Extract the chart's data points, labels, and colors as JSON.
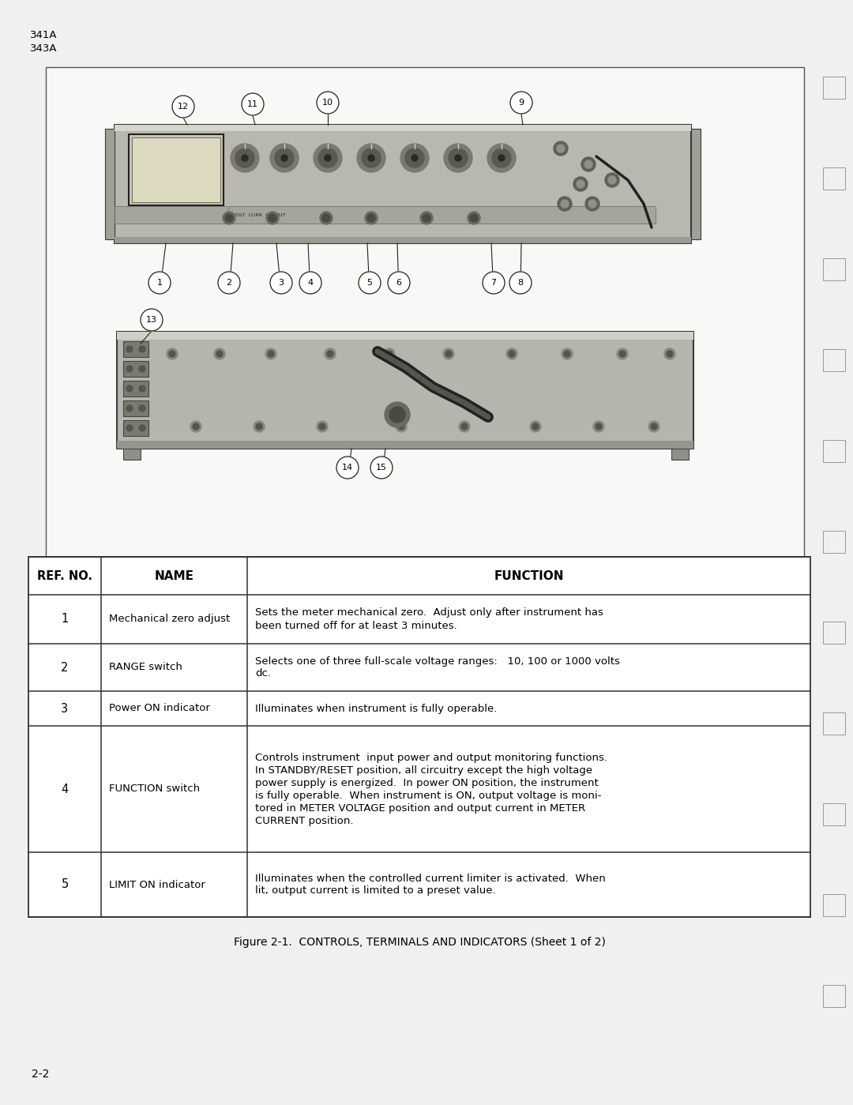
{
  "page_bg": "#f2f2f0",
  "content_bg": "#ffffff",
  "border_color": "#444444",
  "text_color": "#000000",
  "header_text1": "341A",
  "header_text2": "343A",
  "figure_caption": "Figure 2-1.  CONTROLS, TERMINALS AND INDICATORS (Sheet 1 of 2)",
  "page_number": "2-2",
  "table_header": [
    "REF. NO.",
    "NAME",
    "FUNCTION"
  ],
  "table_rows": [
    {
      "ref": "1",
      "name": "Mechanical zero adjust",
      "function": "Sets the meter mechanical zero.  Adjust only after instrument has\nbeen turned off for at least 3 minutes."
    },
    {
      "ref": "2",
      "name": "RANGE switch",
      "function": "Selects one of three full-scale voltage ranges:   10, 100 or 1000 volts\ndc."
    },
    {
      "ref": "3",
      "name": "Power ON indicator",
      "function": "Illuminates when instrument is fully operable."
    },
    {
      "ref": "4",
      "name": "FUNCTION switch",
      "function": "Controls instrument  input power and output monitoring functions.\nIn STANDBY/RESET position, all circuitry except the high voltage\npower supply is energized.  In power ON position, the instrument\nis fully operable.  When instrument is ON, output voltage is moni-\ntored in METER VOLTAGE position and output current in METER\nCURRENT position."
    },
    {
      "ref": "5",
      "name": "LIMIT ON indicator",
      "function": "Illuminates when the controlled current limiter is activated.  When\nlit, output current is limited to a preset value."
    }
  ]
}
